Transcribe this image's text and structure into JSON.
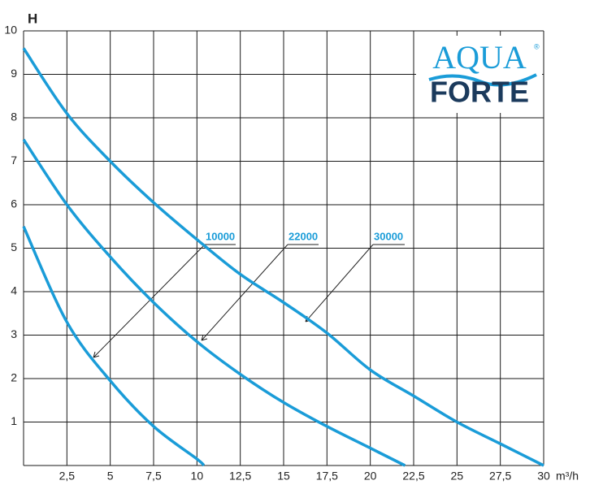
{
  "chart_data": {
    "type": "line",
    "y_label": "H",
    "x_label": "m³/h",
    "xlim": [
      0,
      30
    ],
    "ylim": [
      0,
      10
    ],
    "xticks": [
      {
        "value": 2.5,
        "label": "2,5"
      },
      5,
      {
        "value": 7.5,
        "label": "7,5"
      },
      10,
      {
        "value": 12.5,
        "label": "12,5"
      },
      15,
      {
        "value": 17.5,
        "label": "17,5"
      },
      20,
      {
        "value": 22.5,
        "label": "22,5"
      },
      25,
      {
        "value": 27.5,
        "label": "27,5"
      },
      30
    ],
    "yticks": [
      1,
      2,
      3,
      4,
      5,
      6,
      7,
      8,
      9,
      10
    ],
    "grid": true,
    "series": [
      {
        "name": "10000",
        "color": "#1a9cd8",
        "x": [
          0,
          2.5,
          5,
          7.5,
          10,
          10.4
        ],
        "values": [
          5.5,
          3.3,
          1.95,
          0.9,
          0.15,
          0
        ]
      },
      {
        "name": "22000",
        "color": "#1a9cd8",
        "x": [
          0,
          2.5,
          5,
          7.5,
          10,
          12.5,
          15,
          17.5,
          20,
          22
        ],
        "values": [
          7.5,
          6.0,
          4.8,
          3.75,
          2.85,
          2.1,
          1.45,
          0.9,
          0.4,
          0
        ]
      },
      {
        "name": "30000",
        "color": "#1a9cd8",
        "x": [
          0,
          2.5,
          5,
          7.5,
          10,
          12.5,
          15,
          17.5,
          20,
          22.5,
          25,
          27.5,
          30
        ],
        "values": [
          9.6,
          8.1,
          7.0,
          6.05,
          5.2,
          4.4,
          3.75,
          3.05,
          2.2,
          1.6,
          1.0,
          0.5,
          0
        ]
      }
    ]
  },
  "logo": {
    "top": "AQUA",
    "bottom": "FORTE",
    "mark": "®"
  }
}
